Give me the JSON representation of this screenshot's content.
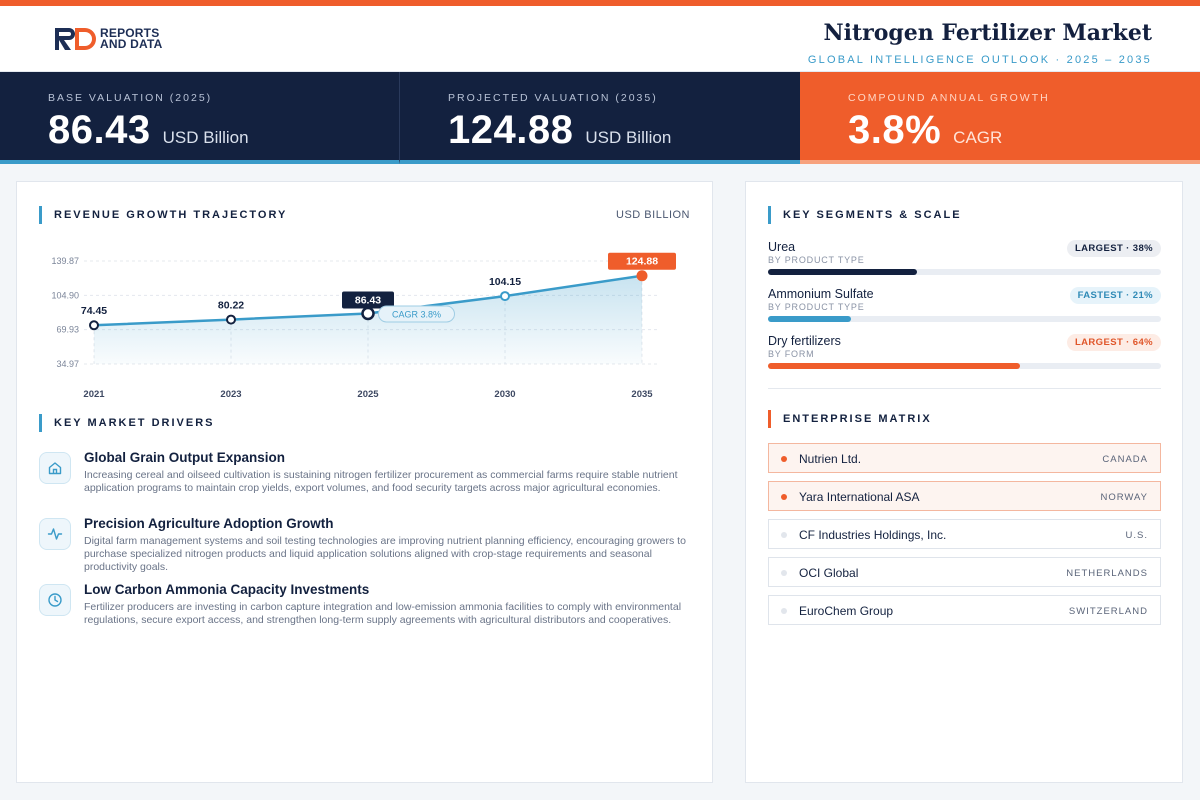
{
  "brand": {
    "line1": "REPORTS",
    "line2": "AND DATA",
    "colors": {
      "dark": "#1d2e55",
      "accent": "#ef5d2b"
    }
  },
  "header": {
    "title": "Nitrogen Fertilizer Market",
    "subtitle": "GLOBAL INTELLIGENCE OUTLOOK  ·  2025 – 2035"
  },
  "kpis": [
    {
      "label": "BASE VALUATION (2025)",
      "value": "86.43",
      "unit": "USD Billion"
    },
    {
      "label": "PROJECTED VALUATION (2035)",
      "value": "124.88",
      "unit": "USD Billion"
    },
    {
      "label": "COMPOUND ANNUAL GROWTH",
      "value": "3.8%",
      "unit": "CAGR"
    }
  ],
  "revenue": {
    "heading": "REVENUE GROWTH TRAJECTORY",
    "unit": "USD BILLION"
  },
  "chart_data": {
    "type": "line",
    "title": "REVENUE GROWTH TRAJECTORY",
    "ylabel": "USD BILLION",
    "xlabel": "",
    "categories": [
      "2021",
      "2023",
      "2025",
      "2030",
      "2035"
    ],
    "series": [
      {
        "values": [
          74.45,
          80.22,
          86.43,
          104.15,
          124.88
        ]
      }
    ],
    "data_labels": [
      "74.45",
      "80.22",
      "86.43",
      "104.15",
      "124.88"
    ],
    "y_ticks": [
      139.87,
      104.9,
      69.93,
      34.97
    ],
    "y_tick_labels": [
      "139.87",
      "104.90",
      "69.93",
      "34.97"
    ],
    "ylim": [
      34.97,
      139.87
    ],
    "annotation": "CAGR 3.8%",
    "grid": true,
    "line_color": "#3a9bc9",
    "highlight_color": "#ef5d2b",
    "base_highlight_color": "#13213f"
  },
  "drivers": {
    "heading": "KEY MARKET DRIVERS",
    "items": [
      {
        "icon": "home-icon",
        "title": "Global Grain Output Expansion",
        "desc": "Increasing cereal and oilseed cultivation is sustaining nitrogen fertilizer procurement as commercial farms require stable nutrient application programs to maintain crop yields, export volumes, and food security targets across major agricultural economies."
      },
      {
        "icon": "activity-icon",
        "title": "Precision Agriculture Adoption Growth",
        "desc": "Digital farm management systems and soil testing technologies are improving nutrient planning efficiency, encouraging growers to purchase specialized nitrogen products and liquid application solutions aligned with crop-stage requirements and seasonal productivity goals."
      },
      {
        "icon": "clock-icon",
        "title": "Low Carbon Ammonia Capacity Investments",
        "desc": "Fertilizer producers are investing in carbon capture integration and low-emission ammonia facilities to comply with environmental regulations, secure export access, and strengthen long-term supply agreements with agricultural distributors and cooperatives."
      }
    ]
  },
  "segments": {
    "heading": "KEY SEGMENTS & SCALE",
    "items": [
      {
        "name": "Urea",
        "sub": "BY PRODUCT TYPE",
        "badge": "LARGEST · 38%",
        "share": 38,
        "color": "#13213f",
        "badge_bg": "#eceef2",
        "badge_fg": "#13213f"
      },
      {
        "name": "Ammonium Sulfate",
        "sub": "BY PRODUCT TYPE",
        "badge": "FASTEST · 21%",
        "share": 21,
        "color": "#3a9bc9",
        "badge_bg": "#e6f3fa",
        "badge_fg": "#2f8ab6"
      },
      {
        "name": "Dry fertilizers",
        "sub": "BY FORM",
        "badge": "LARGEST · 64%",
        "share": 64,
        "color": "#ef5d2b",
        "badge_bg": "#fdece5",
        "badge_fg": "#e0562a"
      }
    ]
  },
  "matrix": {
    "heading": "ENTERPRISE MATRIX",
    "items": [
      {
        "name": "Nutrien Ltd.",
        "country": "CANADA",
        "highlight": true
      },
      {
        "name": "Yara International ASA",
        "country": "NORWAY",
        "highlight": true
      },
      {
        "name": "CF Industries Holdings, Inc.",
        "country": "U.S.",
        "highlight": false
      },
      {
        "name": "OCI Global",
        "country": "NETHERLANDS",
        "highlight": false
      },
      {
        "name": "EuroChem Group",
        "country": "SWITZERLAND",
        "highlight": false
      }
    ]
  }
}
